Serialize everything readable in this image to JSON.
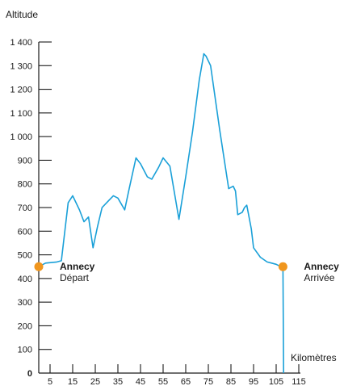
{
  "chart_data": {
    "type": "line",
    "ylabel": "Altitude",
    "xlabel": "Kilomètres",
    "xlim": [
      0,
      115
    ],
    "ylim": [
      0,
      1400
    ],
    "x_ticks": [
      5,
      15,
      25,
      35,
      45,
      55,
      65,
      75,
      85,
      95,
      105,
      115
    ],
    "x_tick_labels": [
      "5",
      "15",
      "25",
      "35",
      "45",
      "55",
      "65",
      "75",
      "85",
      "95",
      "105",
      "115"
    ],
    "y_ticks": [
      0,
      100,
      200,
      300,
      400,
      500,
      600,
      700,
      800,
      900,
      1000,
      1100,
      1200,
      1300,
      1400
    ],
    "y_tick_labels": [
      "0",
      "100",
      "200",
      "300",
      "400",
      "500",
      "600",
      "700",
      "800",
      "900",
      "1 000",
      "1 100",
      "1 200",
      "1 300",
      "1 400"
    ],
    "series": [
      {
        "color": "#1aa0d8",
        "x": [
          0,
          3,
          8,
          10,
          13,
          15,
          18,
          20,
          22,
          24,
          26,
          28,
          31,
          33,
          35,
          38,
          40,
          43,
          45,
          48,
          50,
          53,
          55,
          58,
          62,
          65,
          68,
          71,
          73,
          74,
          76,
          80,
          84,
          86,
          87,
          88,
          90,
          91,
          92,
          94,
          95,
          98,
          101,
          103,
          105,
          107,
          108,
          108.3
        ],
        "y": [
          450,
          465,
          470,
          475,
          720,
          750,
          690,
          640,
          660,
          530,
          620,
          700,
          730,
          750,
          740,
          690,
          780,
          910,
          885,
          830,
          820,
          870,
          910,
          875,
          650,
          830,
          1020,
          1240,
          1350,
          1340,
          1300,
          1030,
          780,
          790,
          770,
          670,
          680,
          700,
          710,
          610,
          530,
          490,
          470,
          465,
          460,
          450,
          450,
          0
        ]
      }
    ],
    "annotations": [
      {
        "x": 0,
        "y": 450,
        "name": "Annecy",
        "sub": "Départ",
        "color": "#f0961e"
      },
      {
        "x": 108,
        "y": 450,
        "name": "Annecy",
        "sub": "Arrivée",
        "color": "#f0961e"
      }
    ],
    "grid": false,
    "axis_color": "#1a1a1a"
  }
}
